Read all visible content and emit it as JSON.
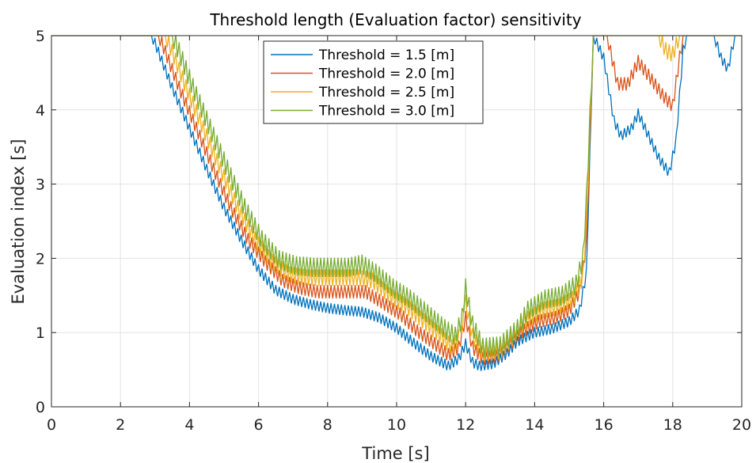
{
  "chart_data": {
    "type": "line",
    "title": "Threshold length (Evaluation factor) sensitivity",
    "xlabel": "Time [s]",
    "ylabel": "Evaluation index [s]",
    "xlim": [
      0,
      20
    ],
    "ylim": [
      0,
      5
    ],
    "xticks": [
      0,
      2,
      4,
      6,
      8,
      10,
      12,
      14,
      16,
      18,
      20
    ],
    "yticks": [
      0,
      1,
      2,
      3,
      4,
      5
    ],
    "grid": true,
    "legend_position": "top-center",
    "series": [
      {
        "name": "Threshold = 1.5 [m]",
        "color": "#0072BD",
        "points": [
          [
            0,
            5
          ],
          [
            2.9,
            5
          ],
          [
            3,
            4.9
          ],
          [
            3.5,
            4.3
          ],
          [
            4,
            3.75
          ],
          [
            4.5,
            3.2
          ],
          [
            5,
            2.68
          ],
          [
            5.5,
            2.25
          ],
          [
            6,
            1.85
          ],
          [
            6.5,
            1.57
          ],
          [
            7,
            1.45
          ],
          [
            7.5,
            1.38
          ],
          [
            8,
            1.33
          ],
          [
            8.5,
            1.3
          ],
          [
            9,
            1.28
          ],
          [
            9.5,
            1.2
          ],
          [
            10,
            1.06
          ],
          [
            10.5,
            0.86
          ],
          [
            11,
            0.68
          ],
          [
            11.5,
            0.55
          ],
          [
            11.8,
            0.65
          ],
          [
            12,
            0.85
          ],
          [
            12.2,
            0.6
          ],
          [
            12.4,
            0.55
          ],
          [
            12.8,
            0.58
          ],
          [
            13.2,
            0.72
          ],
          [
            13.5,
            0.88
          ],
          [
            14,
            1.0
          ],
          [
            14.5,
            1.05
          ],
          [
            15,
            1.15
          ],
          [
            15.3,
            1.3
          ],
          [
            15.5,
            1.8
          ],
          [
            15.7,
            5
          ],
          [
            16,
            4.7
          ],
          [
            16.3,
            3.85
          ],
          [
            16.5,
            3.65
          ],
          [
            16.8,
            3.75
          ],
          [
            17,
            3.95
          ],
          [
            17.3,
            3.65
          ],
          [
            17.6,
            3.35
          ],
          [
            17.9,
            3.15
          ],
          [
            18.1,
            3.6
          ],
          [
            18.3,
            4.8
          ],
          [
            18.4,
            5
          ],
          [
            19.2,
            5
          ],
          [
            19.4,
            4.7
          ],
          [
            19.6,
            4.55
          ],
          [
            19.8,
            5
          ],
          [
            20,
            5
          ]
        ]
      },
      {
        "name": "Threshold = 2.0 [m]",
        "color": "#D95319",
        "points": [
          [
            0,
            5
          ],
          [
            3.1,
            5
          ],
          [
            3.2,
            4.9
          ],
          [
            3.7,
            4.3
          ],
          [
            4.2,
            3.75
          ],
          [
            4.7,
            3.2
          ],
          [
            5.2,
            2.68
          ],
          [
            5.7,
            2.25
          ],
          [
            6.2,
            1.95
          ],
          [
            6.7,
            1.7
          ],
          [
            7.2,
            1.6
          ],
          [
            7.7,
            1.55
          ],
          [
            8.2,
            1.55
          ],
          [
            8.7,
            1.55
          ],
          [
            9.1,
            1.55
          ],
          [
            9.6,
            1.4
          ],
          [
            10.1,
            1.25
          ],
          [
            10.6,
            1.02
          ],
          [
            11.1,
            0.85
          ],
          [
            11.5,
            0.7
          ],
          [
            11.8,
            0.8
          ],
          [
            12,
            1.2
          ],
          [
            12.2,
            0.8
          ],
          [
            12.5,
            0.65
          ],
          [
            12.9,
            0.68
          ],
          [
            13.3,
            0.85
          ],
          [
            13.6,
            1.0
          ],
          [
            14.1,
            1.15
          ],
          [
            14.6,
            1.2
          ],
          [
            15,
            1.3
          ],
          [
            15.3,
            1.55
          ],
          [
            15.5,
            2.2
          ],
          [
            15.7,
            5
          ],
          [
            16.1,
            5
          ],
          [
            16.4,
            4.35
          ],
          [
            16.7,
            4.35
          ],
          [
            17,
            4.65
          ],
          [
            17.4,
            4.4
          ],
          [
            17.7,
            4.2
          ],
          [
            18,
            4.05
          ],
          [
            18.2,
            4.7
          ],
          [
            18.3,
            5
          ],
          [
            20,
            5
          ]
        ]
      },
      {
        "name": "Threshold = 2.5 [m]",
        "color": "#EDB120",
        "points": [
          [
            0,
            5
          ],
          [
            3.3,
            5
          ],
          [
            3.4,
            4.9
          ],
          [
            3.9,
            4.3
          ],
          [
            4.4,
            3.75
          ],
          [
            4.9,
            3.2
          ],
          [
            5.4,
            2.68
          ],
          [
            5.9,
            2.25
          ],
          [
            6.4,
            1.95
          ],
          [
            6.9,
            1.78
          ],
          [
            7.4,
            1.74
          ],
          [
            7.9,
            1.74
          ],
          [
            8.4,
            1.74
          ],
          [
            8.9,
            1.74
          ],
          [
            9.3,
            1.7
          ],
          [
            9.8,
            1.5
          ],
          [
            10.3,
            1.35
          ],
          [
            10.8,
            1.15
          ],
          [
            11.3,
            0.95
          ],
          [
            11.6,
            0.8
          ],
          [
            11.85,
            0.95
          ],
          [
            12,
            1.4
          ],
          [
            12.2,
            0.95
          ],
          [
            12.5,
            0.72
          ],
          [
            13,
            0.75
          ],
          [
            13.4,
            0.95
          ],
          [
            13.7,
            1.15
          ],
          [
            14.2,
            1.3
          ],
          [
            14.7,
            1.35
          ],
          [
            15.1,
            1.45
          ],
          [
            15.4,
            1.75
          ],
          [
            15.5,
            2.5
          ],
          [
            15.7,
            5
          ],
          [
            17.6,
            5
          ],
          [
            17.8,
            4.8
          ],
          [
            18,
            4.75
          ],
          [
            18.2,
            5
          ],
          [
            20,
            5
          ]
        ]
      },
      {
        "name": "Threshold = 3.0 [m]",
        "color": "#77AC30",
        "points": [
          [
            0,
            5
          ],
          [
            3.5,
            5
          ],
          [
            3.6,
            4.9
          ],
          [
            4.1,
            4.3
          ],
          [
            4.6,
            3.75
          ],
          [
            5.1,
            3.2
          ],
          [
            5.6,
            2.68
          ],
          [
            6.1,
            2.25
          ],
          [
            6.6,
            1.98
          ],
          [
            7.1,
            1.9
          ],
          [
            7.6,
            1.88
          ],
          [
            8.1,
            1.88
          ],
          [
            8.6,
            1.88
          ],
          [
            9,
            1.92
          ],
          [
            9.4,
            1.8
          ],
          [
            9.9,
            1.6
          ],
          [
            10.4,
            1.45
          ],
          [
            10.9,
            1.25
          ],
          [
            11.4,
            1.05
          ],
          [
            11.7,
            0.95
          ],
          [
            11.9,
            1.2
          ],
          [
            12,
            1.6
          ],
          [
            12.2,
            1.1
          ],
          [
            12.5,
            0.8
          ],
          [
            13,
            0.82
          ],
          [
            13.5,
            1.05
          ],
          [
            13.8,
            1.3
          ],
          [
            14.3,
            1.45
          ],
          [
            14.8,
            1.5
          ],
          [
            15.2,
            1.65
          ],
          [
            15.4,
            2.0
          ],
          [
            15.5,
            2.8
          ],
          [
            15.7,
            5
          ],
          [
            20,
            5
          ]
        ]
      }
    ]
  }
}
